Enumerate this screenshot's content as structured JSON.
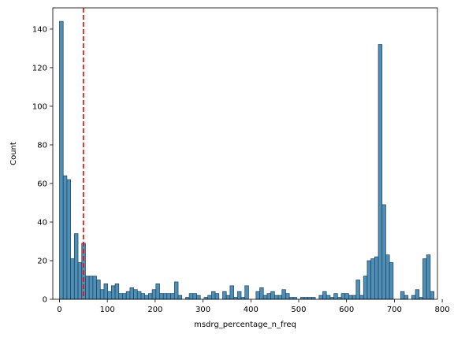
{
  "chart_data": {
    "type": "histogram",
    "title": "",
    "xlabel": "msdrg_percentage_n_freq",
    "ylabel": "Count",
    "xlim": [
      -14,
      790
    ],
    "ylim": [
      0,
      151
    ],
    "xticks": [
      0,
      100,
      200,
      300,
      400,
      500,
      600,
      700,
      800
    ],
    "yticks": [
      0,
      20,
      40,
      60,
      80,
      100,
      120,
      140
    ],
    "bin_start": 0,
    "bin_width": 7.75,
    "counts": [
      144,
      64,
      62,
      21,
      34,
      19,
      29,
      12,
      12,
      12,
      10,
      5,
      8,
      4,
      7,
      8,
      3,
      3,
      4,
      6,
      5,
      4,
      3,
      2,
      3,
      5,
      8,
      3,
      3,
      3,
      3,
      9,
      2,
      0,
      1,
      3,
      3,
      2,
      0,
      1,
      2,
      4,
      3,
      0,
      4,
      2,
      7,
      1,
      4,
      1,
      7,
      0,
      0,
      4,
      6,
      2,
      3,
      4,
      2,
      2,
      5,
      3,
      1,
      1,
      0,
      1,
      1,
      1,
      1,
      0,
      2,
      4,
      2,
      1,
      3,
      1,
      3,
      3,
      2,
      2,
      10,
      2,
      12,
      20,
      21,
      22,
      132,
      49,
      23,
      19,
      0,
      0,
      4,
      2,
      0,
      2,
      5,
      1,
      21,
      23,
      4
    ],
    "threshold_line": {
      "x": 50,
      "style": "dashed",
      "color": "#ff0000"
    },
    "bar_color": "#4e8fb8",
    "bar_edge_color": "#1f3d52",
    "grid": false
  }
}
